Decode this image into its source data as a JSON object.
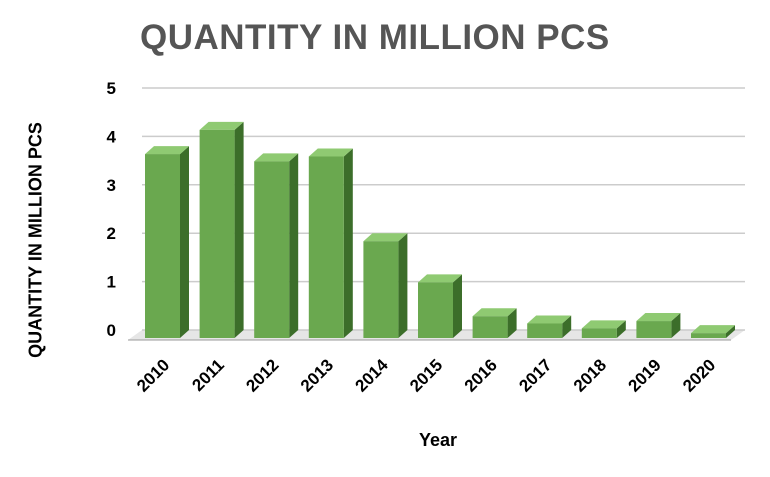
{
  "chart_data": {
    "type": "bar",
    "title": "QUANTITY IN MILLION PCS",
    "xlabel": "Year",
    "ylabel": "QUANTITY IN MILLION PCS",
    "categories": [
      "2010",
      "2011",
      "2012",
      "2013",
      "2014",
      "2015",
      "2016",
      "2017",
      "2018",
      "2019",
      "2020"
    ],
    "values": [
      3.8,
      4.3,
      3.65,
      3.75,
      2.0,
      1.15,
      0.45,
      0.3,
      0.2,
      0.35,
      0.1
    ],
    "yticks": [
      "0",
      "1",
      "2",
      "3",
      "4",
      "5"
    ],
    "ylim": [
      0,
      5
    ],
    "grid": true,
    "bar_style": "3d",
    "colors": {
      "bar_front": "#6aa84f",
      "bar_side": "#3c6e2a",
      "bar_top": "#8fca72",
      "grid": "#cccccc",
      "floor": "#e6e6e6"
    }
  }
}
